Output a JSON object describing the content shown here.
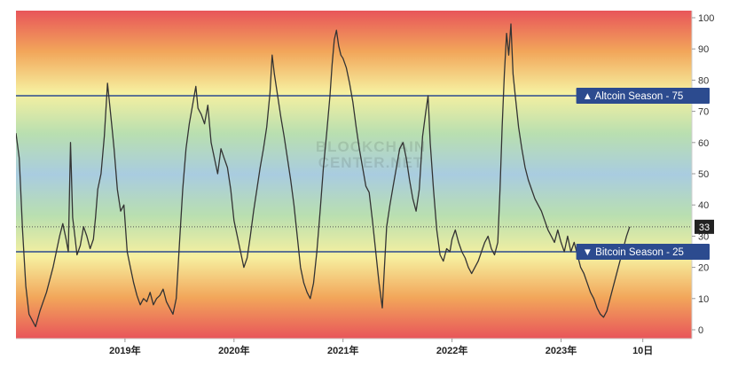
{
  "chart_data": {
    "type": "line",
    "title": "",
    "xlabel": "",
    "ylabel": "",
    "watermark_line1": "BLOCKCHAIN",
    "watermark_line2": "CENTER.NET",
    "ylim": [
      0,
      100
    ],
    "y_ticks": [
      0,
      10,
      20,
      30,
      40,
      50,
      60,
      70,
      80,
      90,
      100
    ],
    "x_labels": [
      {
        "t": 2019.0,
        "label": "2019年"
      },
      {
        "t": 2020.0,
        "label": "2020年"
      },
      {
        "t": 2021.0,
        "label": "2021年"
      },
      {
        "t": 2022.0,
        "label": "2022年"
      },
      {
        "t": 2023.0,
        "label": "2023年"
      },
      {
        "t": 2023.75,
        "label": "10日"
      }
    ],
    "xlim": [
      2018.0,
      2024.2
    ],
    "thresholds": [
      {
        "name": "Altcoin Season",
        "value": 75,
        "marker": "▲",
        "color": "#2c4b8f"
      },
      {
        "name": "Bitcoin Season",
        "value": 25,
        "marker": "▼",
        "color": "#2c4b8f"
      }
    ],
    "current_value": {
      "value": 33,
      "label": "33",
      "color": "#222222"
    },
    "background_gradient": [
      "#e8555a",
      "#f2a65a",
      "#f6f0a0",
      "#b9dfb0",
      "#a9cce0",
      "#b9dfb0",
      "#f6f0a0",
      "#f2a65a",
      "#e8555a"
    ],
    "series": [
      {
        "color": "#333333",
        "points": [
          [
            2018.0,
            63
          ],
          [
            2018.03,
            55
          ],
          [
            2018.06,
            32
          ],
          [
            2018.09,
            14
          ],
          [
            2018.12,
            5
          ],
          [
            2018.15,
            3
          ],
          [
            2018.18,
            1
          ],
          [
            2018.22,
            6
          ],
          [
            2018.25,
            9
          ],
          [
            2018.28,
            12
          ],
          [
            2018.31,
            16
          ],
          [
            2018.34,
            20
          ],
          [
            2018.37,
            25
          ],
          [
            2018.4,
            30
          ],
          [
            2018.43,
            34
          ],
          [
            2018.46,
            29
          ],
          [
            2018.48,
            25
          ],
          [
            2018.5,
            60
          ],
          [
            2018.52,
            36
          ],
          [
            2018.54,
            30
          ],
          [
            2018.56,
            24
          ],
          [
            2018.59,
            27
          ],
          [
            2018.62,
            33
          ],
          [
            2018.65,
            30
          ],
          [
            2018.68,
            26
          ],
          [
            2018.71,
            29
          ],
          [
            2018.73,
            36
          ],
          [
            2018.75,
            45
          ],
          [
            2018.78,
            50
          ],
          [
            2018.81,
            62
          ],
          [
            2018.84,
            79
          ],
          [
            2018.86,
            72
          ],
          [
            2018.88,
            65
          ],
          [
            2018.9,
            58
          ],
          [
            2018.93,
            45
          ],
          [
            2018.96,
            38
          ],
          [
            2018.99,
            40
          ],
          [
            2019.02,
            25
          ],
          [
            2019.05,
            20
          ],
          [
            2019.08,
            15
          ],
          [
            2019.11,
            11
          ],
          [
            2019.14,
            8
          ],
          [
            2019.17,
            10
          ],
          [
            2019.2,
            9
          ],
          [
            2019.23,
            12
          ],
          [
            2019.26,
            8
          ],
          [
            2019.29,
            10
          ],
          [
            2019.32,
            11
          ],
          [
            2019.35,
            13
          ],
          [
            2019.38,
            9
          ],
          [
            2019.41,
            7
          ],
          [
            2019.44,
            5
          ],
          [
            2019.47,
            10
          ],
          [
            2019.5,
            28
          ],
          [
            2019.53,
            45
          ],
          [
            2019.56,
            58
          ],
          [
            2019.59,
            66
          ],
          [
            2019.62,
            72
          ],
          [
            2019.65,
            78
          ],
          [
            2019.67,
            71
          ],
          [
            2019.7,
            69
          ],
          [
            2019.73,
            66
          ],
          [
            2019.76,
            72
          ],
          [
            2019.79,
            60
          ],
          [
            2019.82,
            55
          ],
          [
            2019.85,
            50
          ],
          [
            2019.88,
            58
          ],
          [
            2019.91,
            55
          ],
          [
            2019.94,
            52
          ],
          [
            2019.97,
            45
          ],
          [
            2020.0,
            35
          ],
          [
            2020.03,
            30
          ],
          [
            2020.06,
            25
          ],
          [
            2020.09,
            20
          ],
          [
            2020.12,
            23
          ],
          [
            2020.15,
            30
          ],
          [
            2020.18,
            38
          ],
          [
            2020.21,
            45
          ],
          [
            2020.24,
            52
          ],
          [
            2020.27,
            58
          ],
          [
            2020.3,
            65
          ],
          [
            2020.33,
            76
          ],
          [
            2020.35,
            88
          ],
          [
            2020.37,
            82
          ],
          [
            2020.4,
            75
          ],
          [
            2020.43,
            68
          ],
          [
            2020.46,
            62
          ],
          [
            2020.49,
            55
          ],
          [
            2020.52,
            48
          ],
          [
            2020.55,
            40
          ],
          [
            2020.58,
            30
          ],
          [
            2020.61,
            20
          ],
          [
            2020.64,
            15
          ],
          [
            2020.67,
            12
          ],
          [
            2020.7,
            10
          ],
          [
            2020.73,
            15
          ],
          [
            2020.76,
            25
          ],
          [
            2020.79,
            38
          ],
          [
            2020.82,
            52
          ],
          [
            2020.85,
            63
          ],
          [
            2020.88,
            75
          ],
          [
            2020.9,
            85
          ],
          [
            2020.92,
            93
          ],
          [
            2020.94,
            96
          ],
          [
            2020.96,
            91
          ],
          [
            2020.98,
            88
          ],
          [
            2021.0,
            87
          ],
          [
            2021.03,
            84
          ],
          [
            2021.06,
            79
          ],
          [
            2021.09,
            73
          ],
          [
            2021.12,
            65
          ],
          [
            2021.15,
            58
          ],
          [
            2021.18,
            52
          ],
          [
            2021.21,
            46
          ],
          [
            2021.24,
            44
          ],
          [
            2021.27,
            35
          ],
          [
            2021.3,
            25
          ],
          [
            2021.33,
            15
          ],
          [
            2021.36,
            7
          ],
          [
            2021.38,
            20
          ],
          [
            2021.4,
            33
          ],
          [
            2021.43,
            40
          ],
          [
            2021.46,
            46
          ],
          [
            2021.49,
            52
          ],
          [
            2021.52,
            58
          ],
          [
            2021.55,
            60
          ],
          [
            2021.58,
            55
          ],
          [
            2021.61,
            48
          ],
          [
            2021.64,
            42
          ],
          [
            2021.67,
            38
          ],
          [
            2021.7,
            45
          ],
          [
            2021.73,
            62
          ],
          [
            2021.76,
            70
          ],
          [
            2021.78,
            75
          ],
          [
            2021.8,
            60
          ],
          [
            2021.83,
            45
          ],
          [
            2021.86,
            32
          ],
          [
            2021.89,
            24
          ],
          [
            2021.92,
            22
          ],
          [
            2021.95,
            26
          ],
          [
            2021.98,
            25
          ],
          [
            2022.0,
            29
          ],
          [
            2022.03,
            32
          ],
          [
            2022.06,
            28
          ],
          [
            2022.09,
            25
          ],
          [
            2022.12,
            23
          ],
          [
            2022.15,
            20
          ],
          [
            2022.18,
            18
          ],
          [
            2022.21,
            20
          ],
          [
            2022.24,
            22
          ],
          [
            2022.27,
            25
          ],
          [
            2022.3,
            28
          ],
          [
            2022.33,
            30
          ],
          [
            2022.36,
            26
          ],
          [
            2022.39,
            24
          ],
          [
            2022.42,
            28
          ],
          [
            2022.44,
            45
          ],
          [
            2022.46,
            65
          ],
          [
            2022.48,
            82
          ],
          [
            2022.5,
            95
          ],
          [
            2022.52,
            88
          ],
          [
            2022.54,
            98
          ],
          [
            2022.56,
            82
          ],
          [
            2022.58,
            75
          ],
          [
            2022.61,
            65
          ],
          [
            2022.64,
            58
          ],
          [
            2022.67,
            52
          ],
          [
            2022.7,
            48
          ],
          [
            2022.73,
            45
          ],
          [
            2022.76,
            42
          ],
          [
            2022.79,
            40
          ],
          [
            2022.82,
            38
          ],
          [
            2022.85,
            35
          ],
          [
            2022.88,
            32
          ],
          [
            2022.91,
            30
          ],
          [
            2022.94,
            28
          ],
          [
            2022.97,
            32
          ],
          [
            2023.0,
            28
          ],
          [
            2023.03,
            25
          ],
          [
            2023.06,
            30
          ],
          [
            2023.09,
            25
          ],
          [
            2023.12,
            28
          ],
          [
            2023.15,
            24
          ],
          [
            2023.18,
            20
          ],
          [
            2023.21,
            18
          ],
          [
            2023.24,
            15
          ],
          [
            2023.27,
            12
          ],
          [
            2023.3,
            10
          ],
          [
            2023.33,
            7
          ],
          [
            2023.36,
            5
          ],
          [
            2023.39,
            4
          ],
          [
            2023.42,
            6
          ],
          [
            2023.45,
            10
          ],
          [
            2023.48,
            14
          ],
          [
            2023.51,
            18
          ],
          [
            2023.54,
            22
          ],
          [
            2023.57,
            26
          ],
          [
            2023.6,
            30
          ],
          [
            2023.63,
            33
          ]
        ]
      }
    ]
  }
}
